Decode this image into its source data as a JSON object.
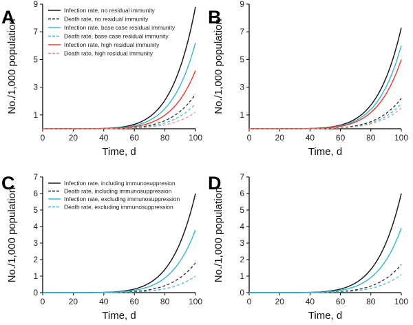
{
  "colors": {
    "infection_none": "#1a1a1a",
    "death_none": "#1a1a1a",
    "infection_base": "#3fb8cf",
    "death_base": "#3fb8cf",
    "infection_high": "#e0443a",
    "death_high": "#e89080",
    "axis": "#000000"
  },
  "chart_data": [
    {
      "panel": "A",
      "type": "line",
      "xlabel": "Time, d",
      "ylabel": "No./1,000 population",
      "xlim": [
        0,
        100
      ],
      "ylim": [
        0,
        9
      ],
      "xticks": [
        0,
        20,
        40,
        60,
        80,
        100
      ],
      "yticks": [
        1,
        3,
        5,
        7,
        9
      ],
      "grid": false,
      "legend_position": "top-left",
      "series": [
        {
          "name": "Infection rate, no residual immunity",
          "final": 8.8,
          "color_key": "infection_none",
          "dashed": false
        },
        {
          "name": "Death rate, no residual immunity",
          "final": 2.5,
          "color_key": "death_none",
          "dashed": true
        },
        {
          "name": "Infection rate, base case residual immunity",
          "final": 6.2,
          "color_key": "infection_base",
          "dashed": false
        },
        {
          "name": "Death rate, base case residual immunity",
          "final": 1.8,
          "color_key": "death_base",
          "dashed": true
        },
        {
          "name": "Infection rate, high residual immunity",
          "final": 4.2,
          "color_key": "infection_high",
          "dashed": false
        },
        {
          "name": "Death rate, high residual immunity",
          "final": 1.2,
          "color_key": "death_high",
          "dashed": true
        }
      ]
    },
    {
      "panel": "B",
      "type": "line",
      "xlabel": "Time, d",
      "ylabel": "No./1,000 population",
      "xlim": [
        0,
        100
      ],
      "ylim": [
        0,
        9
      ],
      "xticks": [
        0,
        20,
        40,
        60,
        80,
        100
      ],
      "yticks": [
        1,
        3,
        5,
        7,
        9
      ],
      "grid": false,
      "series": [
        {
          "name": "",
          "final": 7.3,
          "color_key": "infection_none",
          "dashed": false
        },
        {
          "name": "",
          "final": 2.2,
          "color_key": "death_none",
          "dashed": true
        },
        {
          "name": "",
          "final": 6.0,
          "color_key": "infection_base",
          "dashed": false
        },
        {
          "name": "",
          "final": 1.8,
          "color_key": "death_base",
          "dashed": true
        },
        {
          "name": "",
          "final": 5.0,
          "color_key": "infection_high",
          "dashed": false
        },
        {
          "name": "",
          "final": 1.5,
          "color_key": "death_high",
          "dashed": true
        }
      ]
    },
    {
      "panel": "C",
      "type": "line",
      "xlabel": "Time, d",
      "ylabel": "No./1,000 population",
      "xlim": [
        0,
        100
      ],
      "ylim": [
        0,
        7
      ],
      "xticks": [
        0,
        20,
        40,
        60,
        80,
        100
      ],
      "yticks": [
        0,
        1,
        2,
        3,
        4,
        5,
        6,
        7
      ],
      "grid": false,
      "legend_position": "top-left",
      "series": [
        {
          "name": "Infection rate, including immunosuppresion",
          "final": 6.0,
          "color_key": "infection_none",
          "dashed": false
        },
        {
          "name": "Death rate, including immunosuppression",
          "final": 1.8,
          "color_key": "death_none",
          "dashed": true
        },
        {
          "name": "Infection rate, excluding immunosuppression",
          "final": 3.8,
          "color_key": "infection_base",
          "dashed": false
        },
        {
          "name": "Death rate, excluding immunosuppression",
          "final": 1.0,
          "color_key": "death_base",
          "dashed": true
        }
      ]
    },
    {
      "panel": "D",
      "type": "line",
      "xlabel": "Time, d",
      "ylabel": "No./1,000 population",
      "xlim": [
        0,
        100
      ],
      "ylim": [
        0,
        7
      ],
      "xticks": [
        0,
        20,
        40,
        60,
        80,
        100
      ],
      "yticks": [
        0,
        1,
        2,
        3,
        4,
        5,
        6,
        7
      ],
      "grid": false,
      "series": [
        {
          "name": "",
          "final": 6.0,
          "color_key": "infection_none",
          "dashed": false
        },
        {
          "name": "",
          "final": 1.7,
          "color_key": "death_none",
          "dashed": true
        },
        {
          "name": "",
          "final": 3.9,
          "color_key": "infection_base",
          "dashed": false
        },
        {
          "name": "",
          "final": 1.1,
          "color_key": "death_base",
          "dashed": true
        }
      ]
    }
  ]
}
